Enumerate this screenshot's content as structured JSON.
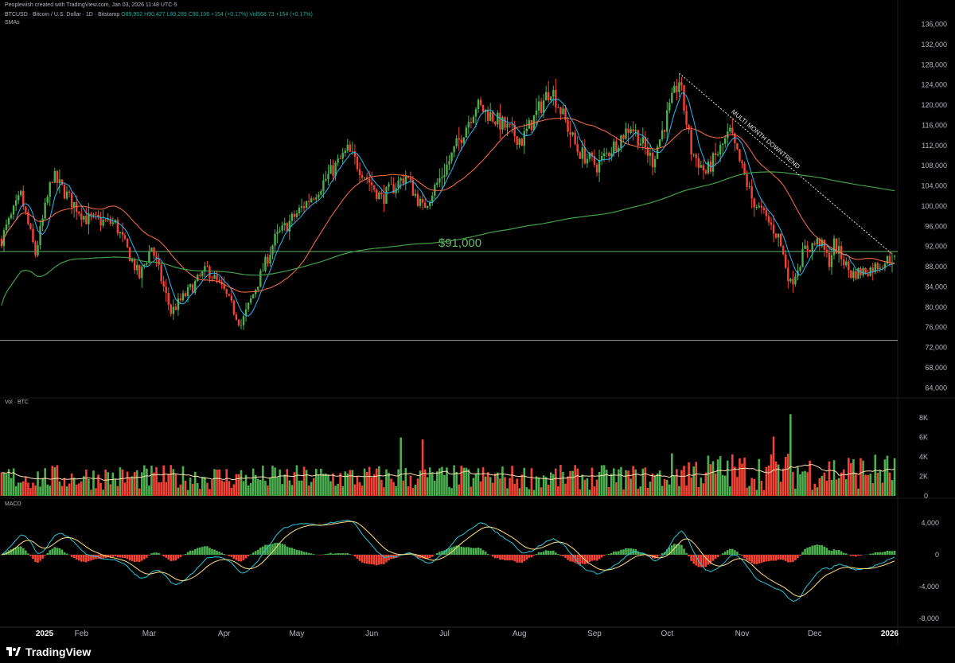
{
  "header": {
    "attribution": "Peoplewish created with TradingView.com, Jan 03, 2026 11:48 UTC-5",
    "symbol": "BTCUSD · Bitcoin / U.S. Dollar · 1D · Bitstamp",
    "ohlc": "O89,952 H90,427 L89,289 C90,106 +154 (+0.17%)",
    "vol": "Vol568.73 +154 (+0.17%)",
    "indicator": "SMAs"
  },
  "panes": {
    "volume_label": "Vol · BTC",
    "macd_label": "MACD"
  },
  "branding": {
    "name": "TradingView"
  },
  "colors": {
    "up": "#26a69a",
    "down": "#ef5350",
    "bull_body": "#4caf50",
    "bear_body": "#f44336",
    "sma_fast": "#29b6f6",
    "sma_mid": "#ff7043",
    "sma_slow": "#43a047",
    "level_line": "#66bb6a",
    "support_line": "#9e9e9e",
    "macd_line": "#26c6da",
    "signal_line": "#ffe082"
  },
  "chart_data": {
    "type": "candlestick",
    "x_axis": {
      "labels": [
        "2025",
        "Feb",
        "Mar",
        "Apr",
        "May",
        "Jun",
        "Jul",
        "Aug",
        "Sep",
        "Oct",
        "Nov",
        "Dec",
        "2026"
      ],
      "dates": [
        "2025-01-01",
        "2025-02-01",
        "2025-03-01",
        "2025-04-01",
        "2025-05-01",
        "2025-06-01",
        "2025-07-01",
        "2025-08-01",
        "2025-09-01",
        "2025-10-01",
        "2025-11-01",
        "2025-12-01",
        "2026-01-01"
      ],
      "bold": [
        "2025",
        "2026"
      ]
    },
    "price_axis": {
      "ticks": [
        64000,
        68000,
        72000,
        76000,
        80000,
        84000,
        88000,
        92000,
        96000,
        100000,
        104000,
        108000,
        112000,
        116000,
        120000,
        124000,
        128000,
        132000,
        136000
      ],
      "range": [
        62000,
        137500
      ]
    },
    "price_path": [
      [
        "2024-12-30",
        93500
      ],
      [
        "2025-01-07",
        102000
      ],
      [
        "2025-01-13",
        90500
      ],
      [
        "2025-01-20",
        106000
      ],
      [
        "2025-01-27",
        101500
      ],
      [
        "2025-02-03",
        97500
      ],
      [
        "2025-02-15",
        96500
      ],
      [
        "2025-02-25",
        86000
      ],
      [
        "2025-03-02",
        92000
      ],
      [
        "2025-03-10",
        79000
      ],
      [
        "2025-03-25",
        87500
      ],
      [
        "2025-04-01",
        83000
      ],
      [
        "2025-04-08",
        76500
      ],
      [
        "2025-04-22",
        93500
      ],
      [
        "2025-05-10",
        103500
      ],
      [
        "2025-05-22",
        111000
      ],
      [
        "2025-06-05",
        101500
      ],
      [
        "2025-06-15",
        106000
      ],
      [
        "2025-06-22",
        99500
      ],
      [
        "2025-07-01",
        107000
      ],
      [
        "2025-07-14",
        120000
      ],
      [
        "2025-07-20",
        118000
      ],
      [
        "2025-08-02",
        113000
      ],
      [
        "2025-08-14",
        123500
      ],
      [
        "2025-08-25",
        111000
      ],
      [
        "2025-09-02",
        108000
      ],
      [
        "2025-09-16",
        116000
      ],
      [
        "2025-09-25",
        109000
      ],
      [
        "2025-10-06",
        125000
      ],
      [
        "2025-10-11",
        111000
      ],
      [
        "2025-10-17",
        106500
      ],
      [
        "2025-10-27",
        114500
      ],
      [
        "2025-11-05",
        101500
      ],
      [
        "2025-11-16",
        94000
      ],
      [
        "2025-11-21",
        84500
      ],
      [
        "2025-11-27",
        91500
      ],
      [
        "2025-12-03",
        93000
      ],
      [
        "2025-12-07",
        89000
      ],
      [
        "2025-12-09",
        92500
      ],
      [
        "2025-12-16",
        86500
      ],
      [
        "2025-12-24",
        87500
      ],
      [
        "2026-01-03",
        90106
      ]
    ],
    "last": {
      "open": 89952,
      "high": 90427,
      "low": 89289,
      "close": 90106
    },
    "moving_averages": [
      {
        "name": "SMA fast",
        "color": "#29b6f6"
      },
      {
        "name": "SMA mid",
        "color": "#ff7043"
      },
      {
        "name": "SMA slow",
        "color": "#43a047"
      }
    ],
    "horizontal_lines": [
      {
        "price": 91000,
        "label": "$91,000",
        "color": "#66bb6a"
      },
      {
        "price": 73400,
        "label": "",
        "color": "#9e9e9e"
      }
    ],
    "trendline": {
      "from": [
        "2025-10-06",
        126300
      ],
      "to": [
        "2026-01-02",
        90500
      ],
      "label": "MULTI MONTH DOWNTREND",
      "style": "dotted"
    },
    "volume": {
      "ticks": [
        0,
        2000,
        4000,
        6000,
        8000
      ],
      "tick_labels": [
        "0",
        "2K",
        "4K",
        "6K",
        "8K"
      ],
      "range": [
        0,
        9000
      ],
      "spikes": [
        [
          "2025-06-13",
          6000
        ],
        [
          "2025-06-22",
          5800
        ],
        [
          "2025-11-14",
          6100
        ],
        [
          "2025-11-21",
          8400
        ]
      ]
    },
    "macd": {
      "ticks": [
        -8000,
        -4000,
        0,
        4000
      ],
      "tick_labels": [
        "-8,000",
        "-4,000",
        "0",
        "4,000"
      ],
      "range": [
        -9000,
        5200
      ]
    }
  }
}
